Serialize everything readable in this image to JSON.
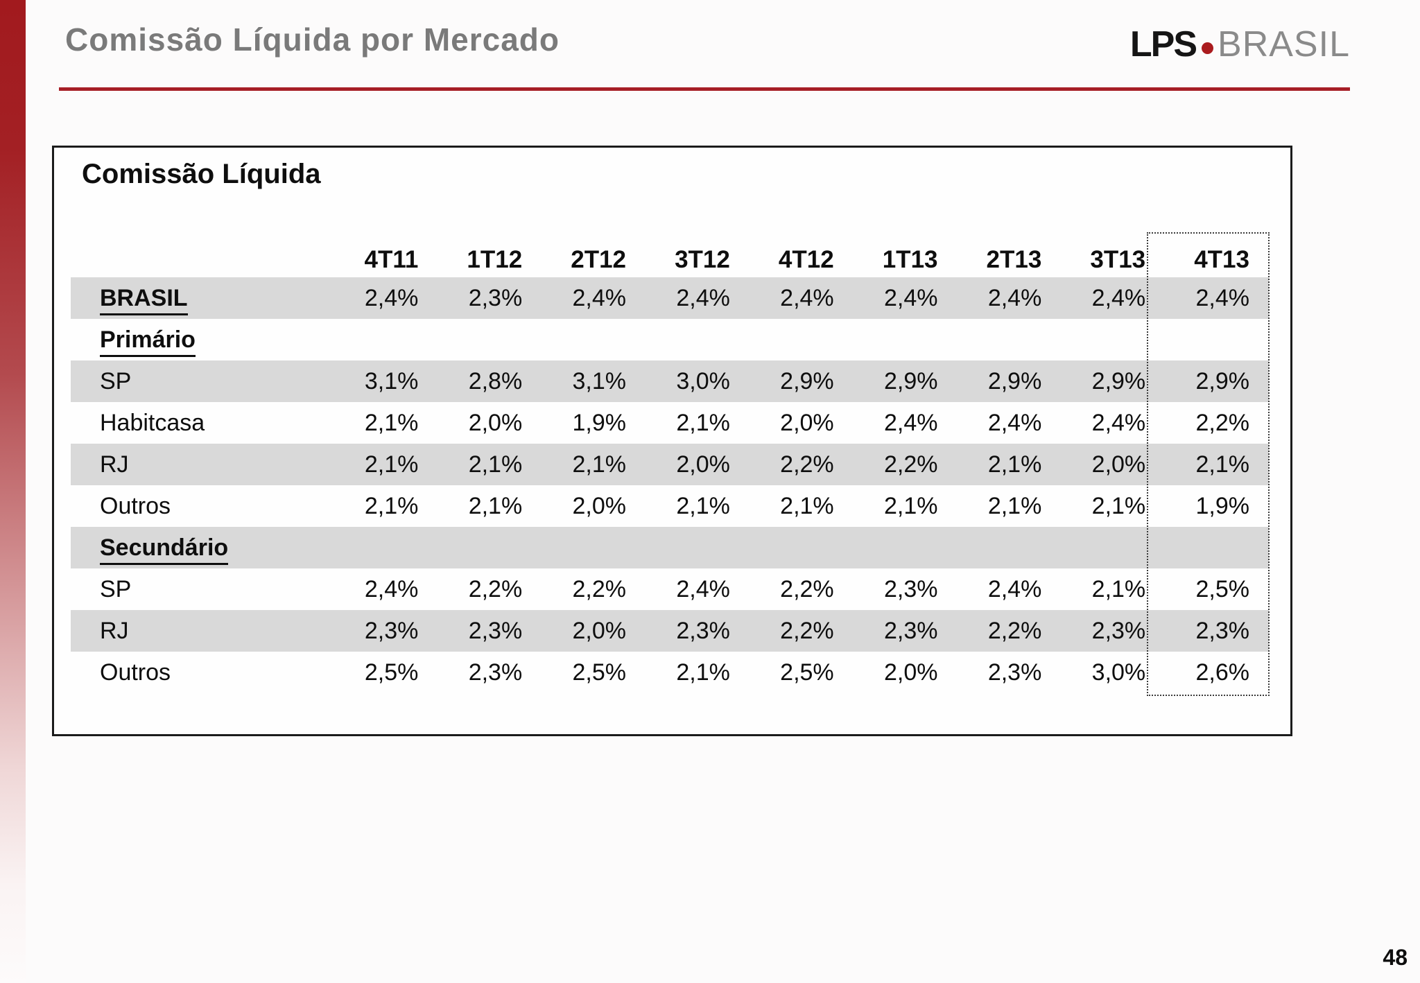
{
  "slide": {
    "title": "Comissão Líquida por Mercado",
    "page_number": "48",
    "logo": {
      "lps": "LPS",
      "brasil": "BRASIL"
    }
  },
  "table": {
    "title": "Comissão Líquida",
    "columns": [
      "4T11",
      "1T12",
      "2T12",
      "3T12",
      "4T12",
      "1T13",
      "2T13",
      "3T13",
      "4T13"
    ],
    "highlighted_column": "4T13",
    "rows": [
      {
        "label": "BRASIL",
        "style": "section",
        "shaded": true,
        "values": [
          "2,4%",
          "2,3%",
          "2,4%",
          "2,4%",
          "2,4%",
          "2,4%",
          "2,4%",
          "2,4%",
          "2,4%"
        ]
      },
      {
        "label": "Primário",
        "style": "section",
        "shaded": false,
        "values": [
          "",
          "",
          "",
          "",
          "",
          "",
          "",
          "",
          ""
        ]
      },
      {
        "label": "SP",
        "style": "data",
        "shaded": true,
        "values": [
          "3,1%",
          "2,8%",
          "3,1%",
          "3,0%",
          "2,9%",
          "2,9%",
          "2,9%",
          "2,9%",
          "2,9%"
        ]
      },
      {
        "label": "Habitcasa",
        "style": "data",
        "shaded": false,
        "values": [
          "2,1%",
          "2,0%",
          "1,9%",
          "2,1%",
          "2,0%",
          "2,4%",
          "2,4%",
          "2,4%",
          "2,2%"
        ]
      },
      {
        "label": "RJ",
        "style": "data",
        "shaded": true,
        "values": [
          "2,1%",
          "2,1%",
          "2,1%",
          "2,0%",
          "2,2%",
          "2,2%",
          "2,1%",
          "2,0%",
          "2,1%"
        ]
      },
      {
        "label": "Outros",
        "style": "data",
        "shaded": false,
        "values": [
          "2,1%",
          "2,1%",
          "2,0%",
          "2,1%",
          "2,1%",
          "2,1%",
          "2,1%",
          "2,1%",
          "1,9%"
        ]
      },
      {
        "label": "Secundário",
        "style": "section",
        "shaded": true,
        "values": [
          "",
          "",
          "",
          "",
          "",
          "",
          "",
          "",
          ""
        ]
      },
      {
        "label": "SP",
        "style": "data",
        "shaded": false,
        "values": [
          "2,4%",
          "2,2%",
          "2,2%",
          "2,4%",
          "2,2%",
          "2,3%",
          "2,4%",
          "2,1%",
          "2,5%"
        ]
      },
      {
        "label": "RJ",
        "style": "data",
        "shaded": true,
        "values": [
          "2,3%",
          "2,3%",
          "2,0%",
          "2,3%",
          "2,2%",
          "2,3%",
          "2,2%",
          "2,3%",
          "2,3%"
        ]
      },
      {
        "label": "Outros",
        "style": "data",
        "shaded": false,
        "values": [
          "2,5%",
          "2,3%",
          "2,5%",
          "2,1%",
          "2,5%",
          "2,0%",
          "2,3%",
          "3,0%",
          "2,6%"
        ]
      }
    ]
  },
  "colors": {
    "accent_red": "#A61E26",
    "row_shade": "#D9D9D9",
    "title_gray": "#7A7A7A",
    "logo_gray": "#8A8A8A",
    "logo_dot_red": "#AA1B1E"
  }
}
